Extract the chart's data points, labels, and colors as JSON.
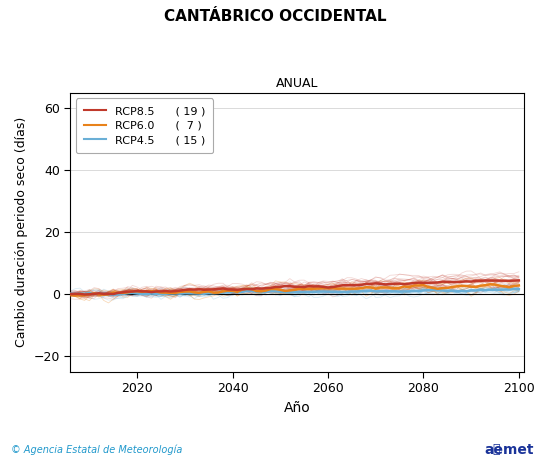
{
  "title": "CANTÁBRICO OCCIDENTAL",
  "subtitle": "ANUAL",
  "xlabel": "Año",
  "ylabel": "Cambio duración periodo seco (días)",
  "xlim": [
    2006,
    2101
  ],
  "ylim": [
    -25,
    65
  ],
  "yticks": [
    -20,
    0,
    20,
    40,
    60
  ],
  "xticks": [
    2020,
    2040,
    2060,
    2080,
    2100
  ],
  "rcp85_color": "#c0392b",
  "rcp60_color": "#e8821a",
  "rcp45_color": "#6aafd6",
  "rcp85_label": "RCP8.5",
  "rcp60_label": "RCP6.0",
  "rcp45_label": "RCP4.5",
  "rcp85_n": "( 19 )",
  "rcp60_n": "(  7 )",
  "rcp45_n": "( 15 )",
  "footer_left": "© Agencia Estatal de Meteorología",
  "background_color": "#ffffff",
  "seed": 42
}
